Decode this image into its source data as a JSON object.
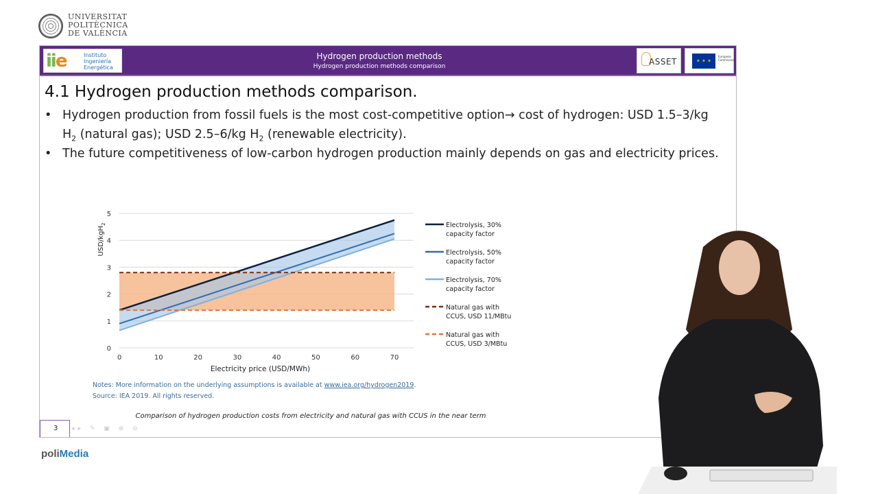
{
  "university": {
    "lines": [
      "UNIVERSITAT",
      "POLITÈCNICA",
      "DE VALÈNCIA"
    ]
  },
  "header": {
    "title": "Hydrogen production methods",
    "subtitle": "Hydrogen production methods comparison",
    "left_logo_lines": [
      "Instituto",
      "Ingeniería",
      "Energética"
    ],
    "asset_logo": "ASSET",
    "eu_logo_lines": [
      "European",
      "Commission"
    ]
  },
  "slide": {
    "title": "4.1 Hydrogen production methods comparison.",
    "bullets": [
      {
        "dot": "•",
        "part1": "Hydrogen production from fossil fuels is the most cost-competitive option→ cost of hydrogen: USD 1.5–3/kg H",
        "sub1": "2",
        "part2": " (natural gas); USD 2.5–6/kg H",
        "sub2": "2",
        "part3": " (renewable electricity)."
      },
      {
        "dot": "•",
        "text": "The future competitiveness of low-carbon hydrogen production mainly depends on gas and electricity prices."
      }
    ],
    "notes_line1_prefix": "Notes: More information on the underlying assumptions is available at ",
    "notes_link": "www.iea.org/hydrogen2019",
    "notes_line1_suffix": ".",
    "notes_line2": "Source: IEA 2019. All rights reserved.",
    "caption": "Comparison of hydrogen production costs from electricity and natural gas with CCUS in the near term",
    "page_number": "3"
  },
  "chart_data": {
    "type": "line",
    "xlabel": "Electricity price (USD/MWh)",
    "ylabel_main": "USD/kgH",
    "ylabel_sub": "2",
    "x_ticks": [
      0,
      10,
      20,
      30,
      40,
      50,
      60,
      70
    ],
    "y_ticks": [
      0,
      1,
      2,
      3,
      4,
      5
    ],
    "xlim": [
      0,
      70
    ],
    "ylim": [
      0,
      5
    ],
    "series": [
      {
        "name": "Electrolysis, 30% capacity factor",
        "legend_lines": [
          "Electrolysis, 30%",
          "capacity factor"
        ],
        "color": "#0d1f3c",
        "style": "solid",
        "x": [
          0,
          70
        ],
        "y": [
          1.4,
          4.75
        ]
      },
      {
        "name": "Electrolysis, 50% capacity factor",
        "legend_lines": [
          "Electrolysis, 50%",
          "capacity factor"
        ],
        "color": "#2e6db4",
        "style": "solid",
        "x": [
          0,
          70
        ],
        "y": [
          0.9,
          4.25
        ]
      },
      {
        "name": "Electrolysis, 70% capacity factor",
        "legend_lines": [
          "Electrolysis, 70%",
          "capacity factor"
        ],
        "color": "#7eb0e0",
        "style": "solid",
        "x": [
          0,
          70
        ],
        "y": [
          0.65,
          4.05
        ]
      },
      {
        "name": "Natural gas with CCUS, USD 11/MBtu",
        "legend_lines": [
          "Natural gas with",
          "CCUS, USD 11/MBtu"
        ],
        "color": "#7a2e10",
        "style": "dashed",
        "x": [
          0,
          70
        ],
        "y": [
          2.8,
          2.8
        ]
      },
      {
        "name": "Natural gas with CCUS, USD 3/MBtu",
        "legend_lines": [
          "Natural gas with",
          "CCUS, USD 3/MBtu"
        ],
        "color": "#e8742e",
        "style": "dashed",
        "x": [
          0,
          70
        ],
        "y": [
          1.4,
          1.4
        ]
      }
    ],
    "gas_band": {
      "color": "#f4b98c",
      "y": [
        1.4,
        2.8
      ],
      "x": [
        0,
        70
      ]
    },
    "electrolysis_band": {
      "color": "#a9c8e8",
      "x": [
        0,
        70
      ]
    },
    "legend": "right"
  },
  "branding": {
    "prefix": "poli",
    "suffix": "Media"
  }
}
